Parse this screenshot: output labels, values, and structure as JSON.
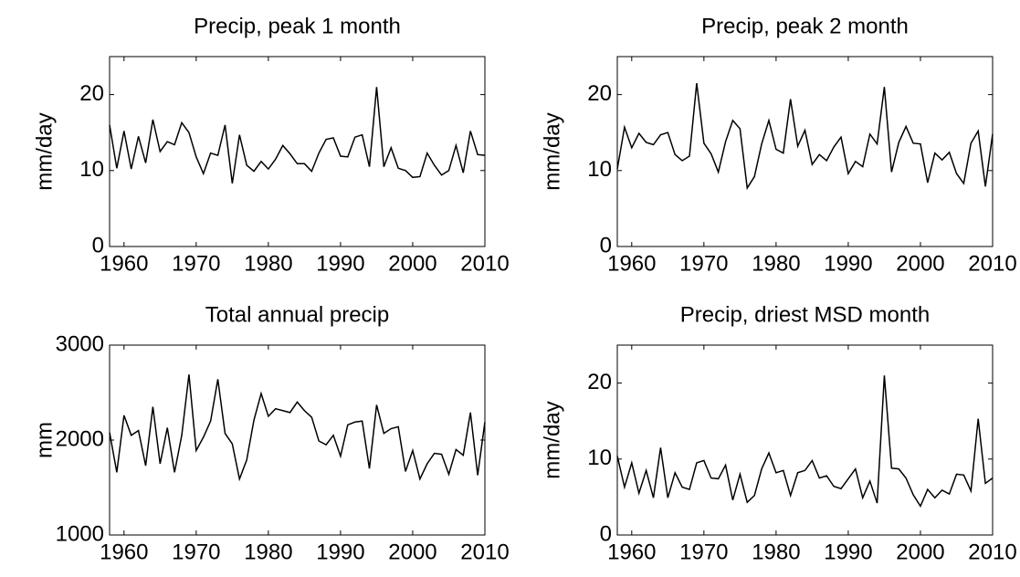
{
  "chart_data": [
    {
      "type": "line",
      "title": "Precip, peak 1 month",
      "ylabel": "mm/day",
      "color": "#000000",
      "x": [
        1958,
        1959,
        1960,
        1961,
        1962,
        1963,
        1964,
        1965,
        1966,
        1967,
        1968,
        1969,
        1970,
        1971,
        1972,
        1973,
        1974,
        1975,
        1976,
        1977,
        1978,
        1979,
        1980,
        1981,
        1982,
        1983,
        1984,
        1985,
        1986,
        1987,
        1988,
        1989,
        1990,
        1991,
        1992,
        1993,
        1994,
        1995,
        1996,
        1997,
        1998,
        1999,
        2000,
        2001,
        2002,
        2003,
        2004,
        2005,
        2006,
        2007,
        2008,
        2009,
        2010
      ],
      "values": [
        16,
        10.3,
        15.2,
        10.2,
        14.5,
        11,
        16.7,
        12.5,
        13.8,
        13.4,
        16.3,
        15,
        11.8,
        9.6,
        12.3,
        12,
        16,
        8.3,
        14.7,
        10.7,
        9.9,
        11.2,
        10.2,
        11.5,
        13.3,
        12.2,
        10.9,
        10.9,
        9.9,
        12.3,
        14.1,
        14.3,
        11.9,
        11.8,
        14.4,
        14.7,
        10.5,
        21,
        10.5,
        13,
        10.3,
        10,
        9.1,
        9.2,
        12.3,
        10.7,
        9.4,
        10,
        13.3,
        9.7,
        15.2,
        12.1,
        12
      ],
      "xlim": [
        1958,
        2010
      ],
      "ylim": [
        0,
        25
      ],
      "xticks": [
        1960,
        1970,
        1980,
        1990,
        2000,
        2010
      ],
      "yticks": [
        0,
        10,
        20
      ]
    },
    {
      "type": "line",
      "title": "Precip, peak 2 month",
      "ylabel": "mm/day",
      "color": "#000000",
      "x": [
        1958,
        1959,
        1960,
        1961,
        1962,
        1963,
        1964,
        1965,
        1966,
        1967,
        1968,
        1969,
        1970,
        1971,
        1972,
        1973,
        1974,
        1975,
        1976,
        1977,
        1978,
        1979,
        1980,
        1981,
        1982,
        1983,
        1984,
        1985,
        1986,
        1987,
        1988,
        1989,
        1990,
        1991,
        1992,
        1993,
        1994,
        1995,
        1996,
        1997,
        1998,
        1999,
        2000,
        2001,
        2002,
        2003,
        2004,
        2005,
        2006,
        2007,
        2008,
        2009,
        2010
      ],
      "values": [
        10.2,
        15.7,
        13,
        14.9,
        13.7,
        13.4,
        14.7,
        15,
        12.1,
        11.3,
        11.9,
        21.5,
        13.6,
        12.2,
        9.8,
        13.8,
        16.6,
        15.5,
        7.7,
        9.2,
        13.5,
        16.6,
        12.8,
        12.3,
        19.4,
        13.2,
        15.3,
        10.8,
        12.1,
        11.3,
        13.1,
        14.4,
        9.6,
        11.2,
        10.5,
        14.8,
        13.5,
        21,
        9.8,
        13.7,
        15.8,
        13.6,
        13.5,
        8.4,
        12.3,
        11.4,
        12.4,
        9.6,
        8.3,
        13.6,
        15.2,
        7.9,
        14.8
      ],
      "xlim": [
        1958,
        2010
      ],
      "ylim": [
        0,
        25
      ],
      "xticks": [
        1960,
        1970,
        1980,
        1990,
        2000,
        2010
      ],
      "yticks": [
        0,
        10,
        20
      ]
    },
    {
      "type": "line",
      "title": "Total annual precip",
      "ylabel": "mm",
      "color": "#000000",
      "x": [
        1958,
        1959,
        1960,
        1961,
        1962,
        1963,
        1964,
        1965,
        1966,
        1967,
        1968,
        1969,
        1970,
        1971,
        1972,
        1973,
        1974,
        1975,
        1976,
        1977,
        1978,
        1979,
        1980,
        1981,
        1982,
        1983,
        1984,
        1985,
        1986,
        1987,
        1988,
        1989,
        1990,
        1991,
        1992,
        1993,
        1994,
        1995,
        1996,
        1997,
        1998,
        1999,
        2000,
        2001,
        2002,
        2003,
        2004,
        2005,
        2006,
        2007,
        2008,
        2009,
        2010
      ],
      "values": [
        2080,
        1660,
        2260,
        2050,
        2100,
        1730,
        2350,
        1750,
        2130,
        1660,
        2050,
        2690,
        1890,
        2030,
        2200,
        2640,
        2070,
        1960,
        1590,
        1790,
        2210,
        2490,
        2250,
        2330,
        2310,
        2290,
        2400,
        2310,
        2240,
        1990,
        1950,
        2050,
        1830,
        2160,
        2190,
        2200,
        1700,
        2370,
        2070,
        2120,
        2140,
        1670,
        1890,
        1590,
        1750,
        1860,
        1850,
        1640,
        1900,
        1840,
        2290,
        1630,
        2190
      ],
      "xlim": [
        1958,
        2010
      ],
      "ylim": [
        1000,
        3000
      ],
      "xticks": [
        1960,
        1970,
        1980,
        1990,
        2000,
        2010
      ],
      "yticks": [
        1000,
        2000,
        3000
      ]
    },
    {
      "type": "line",
      "title": "Precip, driest MSD month",
      "ylabel": "mm/day",
      "color": "#000000",
      "x": [
        1958,
        1959,
        1960,
        1961,
        1962,
        1963,
        1964,
        1965,
        1966,
        1967,
        1968,
        1969,
        1970,
        1971,
        1972,
        1973,
        1974,
        1975,
        1976,
        1977,
        1978,
        1979,
        1980,
        1981,
        1982,
        1983,
        1984,
        1985,
        1986,
        1987,
        1988,
        1989,
        1990,
        1991,
        1992,
        1993,
        1994,
        1995,
        1996,
        1997,
        1998,
        1999,
        2000,
        2001,
        2002,
        2003,
        2004,
        2005,
        2006,
        2007,
        2008,
        2009,
        2010
      ],
      "values": [
        10.4,
        6.3,
        9.5,
        5.5,
        8.5,
        4.9,
        11.5,
        4.9,
        8.2,
        6.3,
        6,
        9.5,
        9.8,
        7.5,
        7.4,
        9.2,
        4.6,
        8,
        4.3,
        5.2,
        8.7,
        10.8,
        8.2,
        8.5,
        5.2,
        8.2,
        8.5,
        9.8,
        7.5,
        7.8,
        6.4,
        6.1,
        7.4,
        8.7,
        4.9,
        7.1,
        4.2,
        21,
        8.8,
        8.7,
        7.5,
        5.3,
        3.8,
        6,
        4.9,
        5.9,
        5.4,
        8,
        7.9,
        5.8,
        15.3,
        6.8,
        7.5
      ],
      "xlim": [
        1958,
        2010
      ],
      "ylim": [
        0,
        25
      ],
      "xticks": [
        1960,
        1970,
        1980,
        1990,
        2000,
        2010
      ],
      "yticks": [
        0,
        10,
        20
      ]
    }
  ]
}
